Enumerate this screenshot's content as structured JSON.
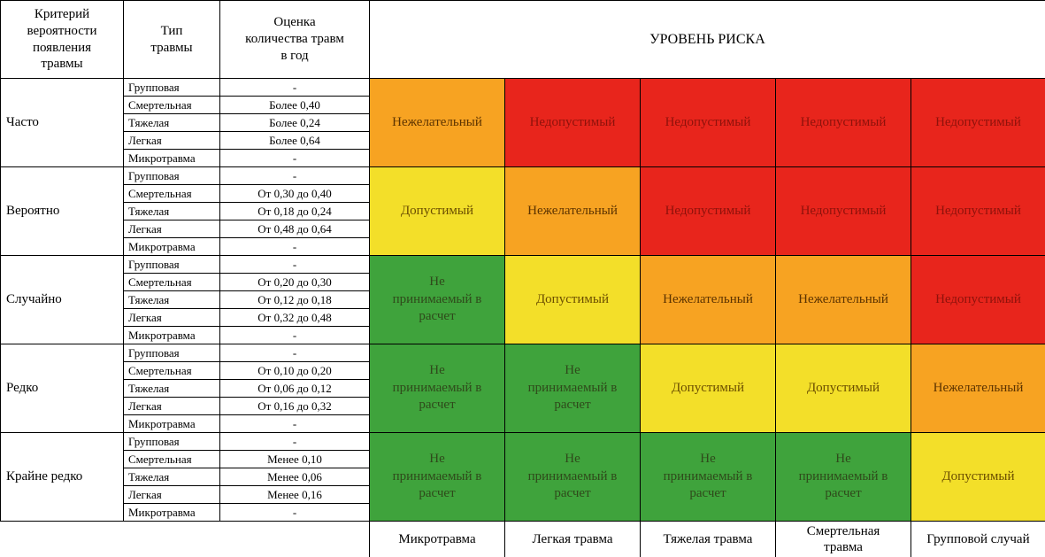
{
  "header": {
    "criterion": "Критерий\nвероятности\nпоявления\nтравмы",
    "injury_type": "Тип\nтравмы",
    "estimate": "Оценка\nколичества травм\nв год",
    "risk_level": "УРОВЕНЬ РИСКА"
  },
  "levels": {
    "unacceptable": {
      "label": "Недопустимый",
      "bg": "#E8251C",
      "text": "#8E120B"
    },
    "undesirable": {
      "label": "Нежелательный",
      "bg": "#F7A322",
      "text": "#5C3300"
    },
    "acceptable": {
      "label": "Допустимый",
      "bg": "#F3DF29",
      "text": "#6B4E00"
    },
    "negligible": {
      "label": "Не\nпринимаемый в\nрасчет",
      "bg": "#3FA33C",
      "text": "#2F4A1B"
    }
  },
  "groups": [
    {
      "criterion": "Часто",
      "rows": [
        {
          "type": "Групповая",
          "estimate": "-"
        },
        {
          "type": "Смертельная",
          "estimate": "Более 0,40"
        },
        {
          "type": "Тяжелая",
          "estimate": "Более 0,24"
        },
        {
          "type": "Легкая",
          "estimate": "Более 0,64"
        },
        {
          "type": "Микротравма",
          "estimate": "-"
        }
      ],
      "risk": [
        "undesirable",
        "unacceptable",
        "unacceptable",
        "unacceptable",
        "unacceptable"
      ]
    },
    {
      "criterion": "Вероятно",
      "rows": [
        {
          "type": "Групповая",
          "estimate": "-"
        },
        {
          "type": "Смертельная",
          "estimate": "От 0,30 до 0,40"
        },
        {
          "type": "Тяжелая",
          "estimate": "От 0,18 до 0,24"
        },
        {
          "type": "Легкая",
          "estimate": "От 0,48 до 0,64"
        },
        {
          "type": "Микротравма",
          "estimate": "-"
        }
      ],
      "risk": [
        "acceptable",
        "undesirable",
        "unacceptable",
        "unacceptable",
        "unacceptable"
      ]
    },
    {
      "criterion": "Случайно",
      "rows": [
        {
          "type": "Групповая",
          "estimate": "-"
        },
        {
          "type": "Смертельная",
          "estimate": "От 0,20 до 0,30"
        },
        {
          "type": "Тяжелая",
          "estimate": "От 0,12 до 0,18"
        },
        {
          "type": "Легкая",
          "estimate": "От 0,32 до 0,48"
        },
        {
          "type": "Микротравма",
          "estimate": "-"
        }
      ],
      "risk": [
        "negligible",
        "acceptable",
        "undesirable",
        "undesirable",
        "unacceptable"
      ]
    },
    {
      "criterion": "Редко",
      "rows": [
        {
          "type": "Групповая",
          "estimate": "-"
        },
        {
          "type": "Смертельная",
          "estimate": "От 0,10 до 0,20"
        },
        {
          "type": "Тяжелая",
          "estimate": "От 0,06 до 0,12"
        },
        {
          "type": "Легкая",
          "estimate": "От 0,16 до 0,32"
        },
        {
          "type": "Микротравма",
          "estimate": "-"
        }
      ],
      "risk": [
        "negligible",
        "negligible",
        "acceptable",
        "acceptable",
        "undesirable"
      ]
    },
    {
      "criterion": "Крайне редко",
      "rows": [
        {
          "type": "Групповая",
          "estimate": "-"
        },
        {
          "type": "Смертельная",
          "estimate": "Менее 0,10"
        },
        {
          "type": "Тяжелая",
          "estimate": "Менее 0,06"
        },
        {
          "type": "Легкая",
          "estimate": "Менее 0,16"
        },
        {
          "type": "Микротравма",
          "estimate": "-"
        }
      ],
      "risk": [
        "negligible",
        "negligible",
        "negligible",
        "negligible",
        "acceptable"
      ]
    }
  ],
  "columns": [
    "Микротравма",
    "Легкая травма",
    "Тяжелая травма",
    "Смертельная\nтравма",
    "Групповой случай"
  ]
}
